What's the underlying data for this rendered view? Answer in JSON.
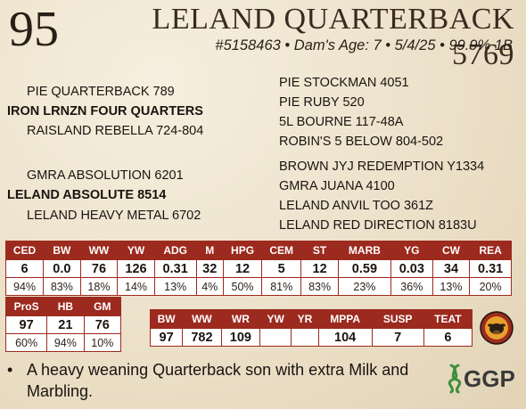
{
  "header": {
    "lot": "95",
    "title": "LELAND QUARTERBACK 5769",
    "subtitle": "#5158463 • Dam's Age: 7 • 5/4/25 • 99.9% 1B"
  },
  "pedigree": {
    "sire": "IRON LRNZN FOUR QUARTERS",
    "sire_sire": "PIE QUARTERBACK 789",
    "sire_dam": "RAISLAND REBELLA 724-804",
    "sss": "PIE STOCKMAN 4051",
    "ssd": "PIE RUBY 520",
    "sds": "5L BOURNE 117-48A",
    "sdd": "ROBIN'S 5 BELOW 804-502",
    "dam": "LELAND ABSOLUTE 8514",
    "dam_sire": "GMRA ABSOLUTION 6201",
    "dam_dam": "LELAND HEAVY METAL 6702",
    "dss": "BROWN JYJ REDEMPTION Y1334",
    "dsd": "GMRA JUANA 4100",
    "dds": "LELAND ANVIL TOO 361Z",
    "ddd": "LELAND RED DIRECTION 8183U"
  },
  "epd": {
    "headers": [
      "CED",
      "BW",
      "WW",
      "YW",
      "ADG",
      "M",
      "HPG",
      "CEM",
      "ST",
      "MARB",
      "YG",
      "CW",
      "REA"
    ],
    "values": [
      "6",
      "0.0",
      "76",
      "126",
      "0.31",
      "32",
      "12",
      "5",
      "12",
      "0.59",
      "0.03",
      "34",
      "0.31"
    ],
    "percentiles": [
      "94%",
      "83%",
      "18%",
      "14%",
      "13%",
      "4%",
      "50%",
      "81%",
      "83%",
      "23%",
      "36%",
      "13%",
      "20%"
    ]
  },
  "indexes": {
    "headers": [
      "ProS",
      "HB",
      "GM"
    ],
    "values": [
      "97",
      "21",
      "76"
    ],
    "percentiles": [
      "60%",
      "94%",
      "10%"
    ]
  },
  "actuals": {
    "headers": [
      "BW",
      "WW",
      "WR",
      "YW",
      "YR",
      "MPPA",
      "SUSP",
      "TEAT"
    ],
    "values": [
      "97",
      "782",
      "109",
      "",
      "",
      "104",
      "7",
      "6"
    ]
  },
  "comment": "A heavy weaning Quarterback son with extra Milk and Marbling.",
  "logos": {
    "ggp_text": "GGP",
    "colors": {
      "accent": "#9c2a1e",
      "ggp_green": "#3a8f3a"
    }
  }
}
